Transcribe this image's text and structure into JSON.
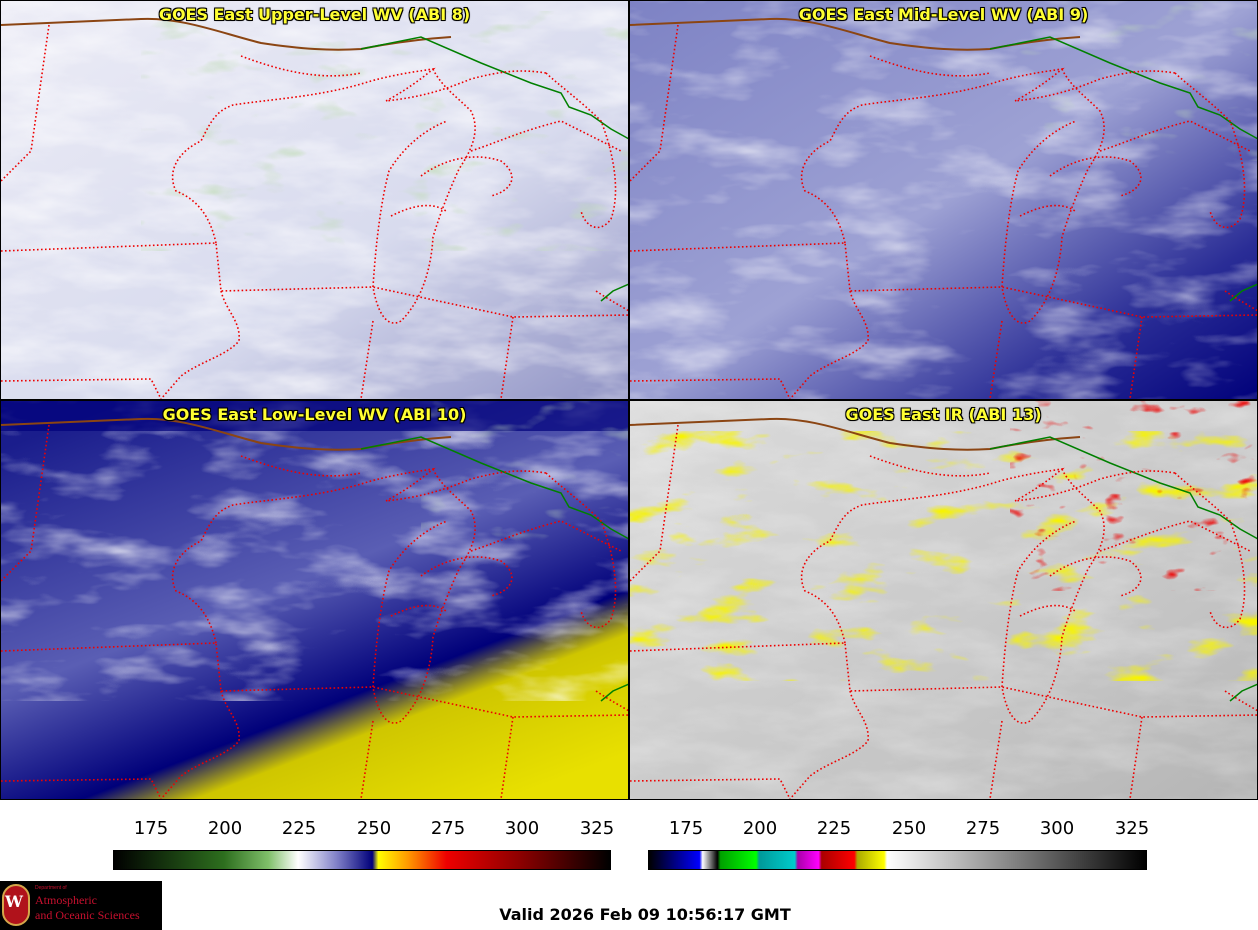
{
  "panels": [
    {
      "title": "GOES East Upper-Level WV (ABI 8)",
      "scheme": "upper"
    },
    {
      "title": "GOES East Mid-Level WV (ABI 9)",
      "scheme": "mid"
    },
    {
      "title": "GOES East Low-Level WV (ABI 10)",
      "scheme": "low"
    },
    {
      "title": "GOES East IR (ABI 13)",
      "scheme": "ir"
    }
  ],
  "colorbars": [
    {
      "name": "water-vapor",
      "ticks": [
        "175",
        "200",
        "225",
        "250",
        "275",
        "300",
        "325"
      ],
      "stops": [
        {
          "value": 163,
          "color": "#000000"
        },
        {
          "value": 200,
          "color": "#2d6e1e"
        },
        {
          "value": 215,
          "color": "#7fbf6a"
        },
        {
          "value": 225,
          "color": "#ffffff"
        },
        {
          "value": 238,
          "color": "#8080c8"
        },
        {
          "value": 250,
          "color": "#00007a"
        },
        {
          "value": 252,
          "color": "#ffff00"
        },
        {
          "value": 262,
          "color": "#ff9900"
        },
        {
          "value": 275,
          "color": "#ee0000"
        },
        {
          "value": 300,
          "color": "#8b0000"
        },
        {
          "value": 330,
          "color": "#000000"
        }
      ]
    },
    {
      "name": "infrared",
      "ticks": [
        "175",
        "200",
        "225",
        "250",
        "275",
        "300",
        "325"
      ],
      "stops": [
        {
          "value": 163,
          "color": "#000000"
        },
        {
          "value": 172,
          "color": "#000088"
        },
        {
          "value": 180,
          "color": "#0000ff"
        },
        {
          "value": 181,
          "color": "#ffffff"
        },
        {
          "value": 186,
          "color": "#000000"
        },
        {
          "value": 187,
          "color": "#00a000"
        },
        {
          "value": 199,
          "color": "#00ff00"
        },
        {
          "value": 200,
          "color": "#009999"
        },
        {
          "value": 212,
          "color": "#00cccc"
        },
        {
          "value": 213,
          "color": "#aa00aa"
        },
        {
          "value": 220,
          "color": "#ff00ff"
        },
        {
          "value": 221,
          "color": "#aa0000"
        },
        {
          "value": 232,
          "color": "#ff0000"
        },
        {
          "value": 233,
          "color": "#aaaa00"
        },
        {
          "value": 242,
          "color": "#ffff00"
        },
        {
          "value": 243,
          "color": "#ffffff"
        },
        {
          "value": 330,
          "color": "#000000"
        }
      ]
    }
  ],
  "valid_time": "Valid 2026 Feb 09 10:56:17 GMT",
  "logo": {
    "dept": "Department of",
    "line1": "Atmospheric",
    "line2": "and Oceanic Sciences",
    "seal_letter": "W"
  },
  "colors": {
    "state_border": "#ff0000",
    "coast": "#8b4513",
    "intl_border": "#008000",
    "title": "#ffff33"
  }
}
